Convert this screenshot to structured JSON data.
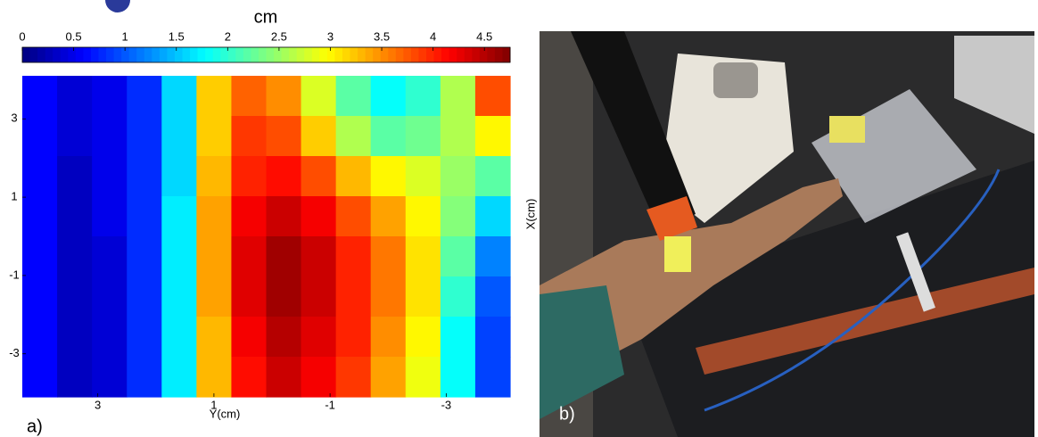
{
  "chart_data": {
    "type": "heatmap",
    "colorbar_label": "cm",
    "clim": [
      0,
      4.75
    ],
    "cticks": [
      0,
      0.5,
      1,
      1.5,
      2,
      2.5,
      3,
      3.5,
      4,
      4.5
    ],
    "colormap": "jet",
    "xlabel": "Y(cm)",
    "ylabel": "X(cm)",
    "xlim": [
      4.3,
      -4.1
    ],
    "ylim": [
      -4.1,
      4.1
    ],
    "xticks": [
      3,
      1,
      -1,
      -3
    ],
    "yticks": [
      3,
      1,
      -1,
      -3
    ],
    "annotations": [
      "a)",
      "b)"
    ],
    "z": [
      [
        0.6,
        0.4,
        0.5,
        0.8,
        1.6,
        3.2,
        3.7,
        3.5,
        2.8,
        2.2,
        1.8,
        2.0,
        2.6,
        3.8
      ],
      [
        0.6,
        0.4,
        0.5,
        0.8,
        1.6,
        3.2,
        3.9,
        3.8,
        3.2,
        2.6,
        2.2,
        2.3,
        2.6,
        3.0
      ],
      [
        0.6,
        0.3,
        0.5,
        0.8,
        1.6,
        3.3,
        4.0,
        4.1,
        3.8,
        3.3,
        3.0,
        2.8,
        2.5,
        2.2
      ],
      [
        0.6,
        0.3,
        0.5,
        0.8,
        1.7,
        3.4,
        4.2,
        4.4,
        4.2,
        3.8,
        3.4,
        3.0,
        2.4,
        1.6
      ],
      [
        0.6,
        0.3,
        0.4,
        0.8,
        1.7,
        3.4,
        4.3,
        4.6,
        4.4,
        4.0,
        3.6,
        3.1,
        2.2,
        1.2
      ],
      [
        0.6,
        0.3,
        0.4,
        0.8,
        1.7,
        3.4,
        4.3,
        4.6,
        4.4,
        4.0,
        3.6,
        3.1,
        2.0,
        1.0
      ],
      [
        0.6,
        0.3,
        0.4,
        0.8,
        1.7,
        3.3,
        4.2,
        4.5,
        4.3,
        4.0,
        3.5,
        3.0,
        1.8,
        0.9
      ],
      [
        0.6,
        0.3,
        0.4,
        0.8,
        1.7,
        3.3,
        4.1,
        4.4,
        4.2,
        3.9,
        3.4,
        2.9,
        1.8,
        0.9
      ]
    ]
  }
}
